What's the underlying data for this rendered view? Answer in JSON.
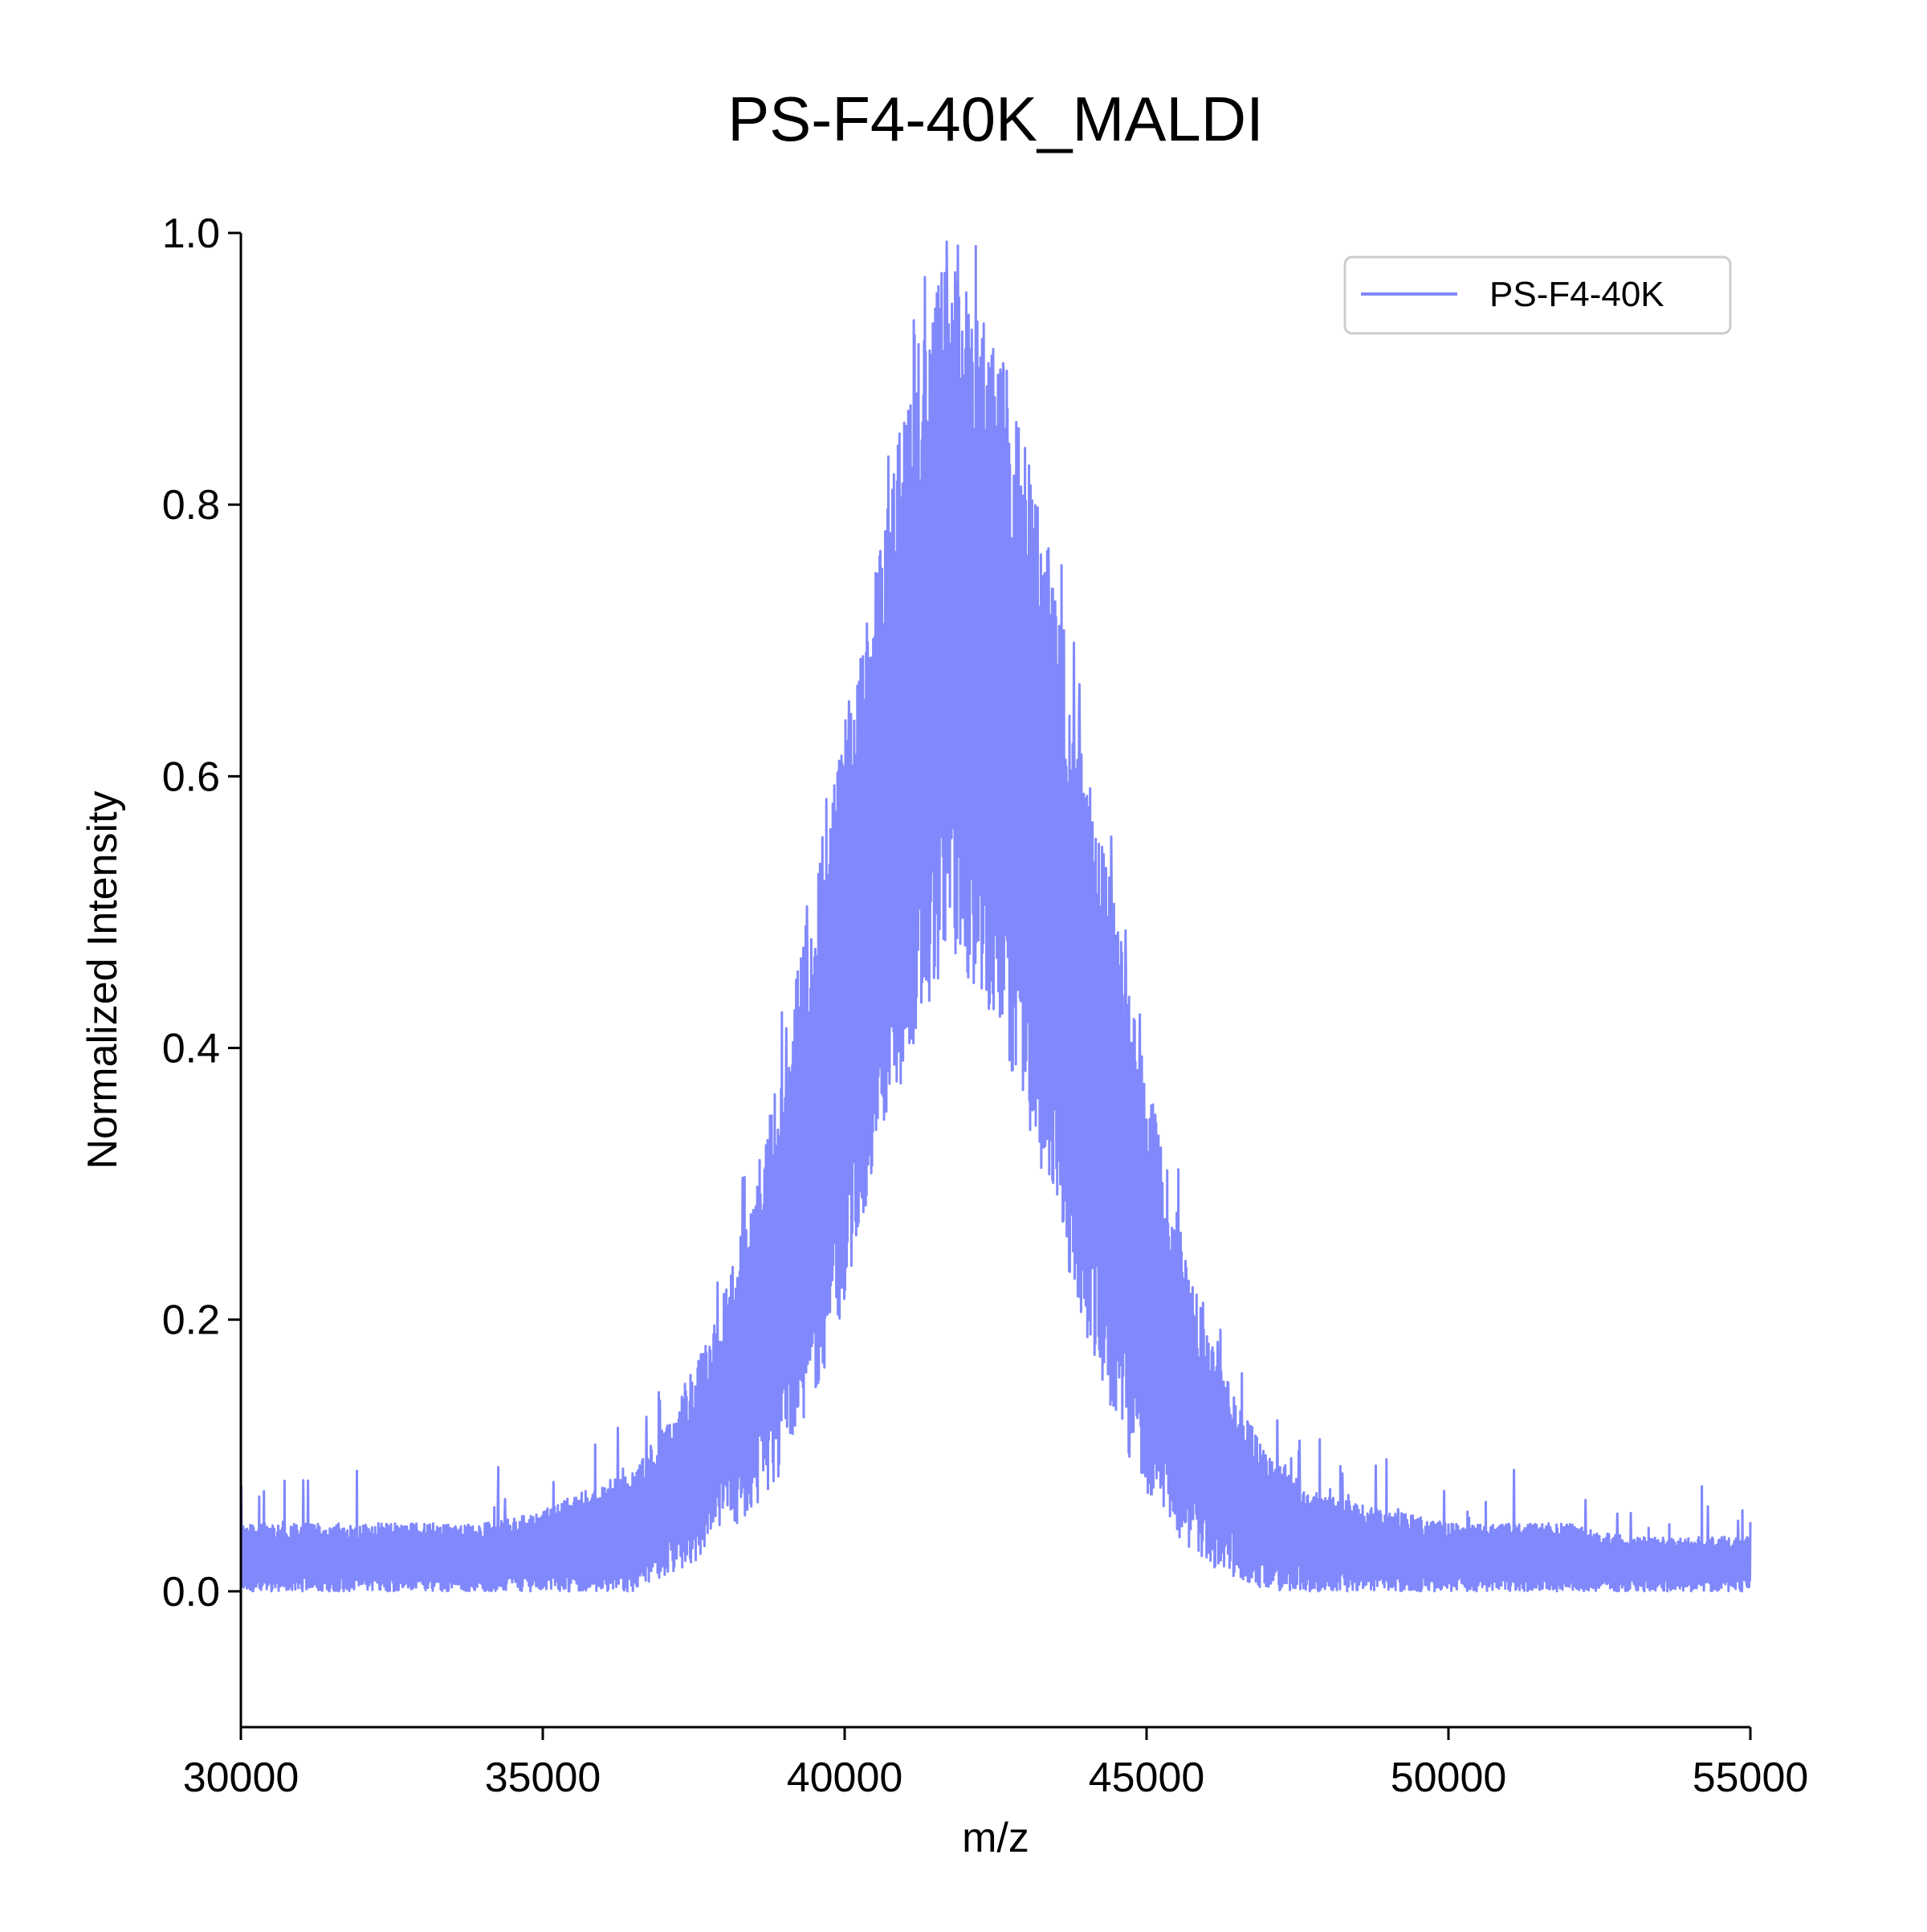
{
  "chart_data": {
    "type": "line",
    "title": "PS-F4-40K_MALDI",
    "xlabel": "m/z",
    "ylabel": "Normalized Intensity",
    "xlim": [
      30000,
      55000
    ],
    "ylim": [
      -0.1,
      1.0
    ],
    "xticks": [
      30000,
      35000,
      40000,
      45000,
      50000,
      55000
    ],
    "yticks": [
      0.0,
      0.2,
      0.4,
      0.6,
      0.8,
      1.0
    ],
    "xtick_labels": [
      "30000",
      "35000",
      "40000",
      "45000",
      "50000",
      "55000"
    ],
    "ytick_labels": [
      "0.0",
      "0.2",
      "0.4",
      "0.6",
      "0.8",
      "1.0"
    ],
    "grid": false,
    "legend": {
      "position": "top-right",
      "entries": [
        "PS-F4-40K"
      ]
    },
    "series": [
      {
        "name": "PS-F4-40K",
        "color": "#8088fc",
        "note_shape": "dense noisy spectrum; envelope summarized below",
        "x": [
          30000,
          31000,
          32000,
          33000,
          34000,
          35000,
          36000,
          36500,
          37000,
          37500,
          38000,
          38500,
          39000,
          39500,
          40000,
          40500,
          41000,
          41500,
          41800,
          42000,
          42500,
          43000,
          43500,
          44000,
          44500,
          45000,
          45500,
          46000,
          46500,
          47000,
          47500,
          48000,
          49000,
          50000,
          51000,
          52000,
          53000,
          54000,
          55000
        ],
        "y_upper": [
          0.05,
          0.05,
          0.05,
          0.05,
          0.05,
          0.06,
          0.08,
          0.09,
          0.12,
          0.16,
          0.22,
          0.3,
          0.4,
          0.53,
          0.63,
          0.75,
          0.88,
          0.96,
          1.0,
          0.97,
          0.92,
          0.84,
          0.74,
          0.62,
          0.5,
          0.38,
          0.28,
          0.19,
          0.14,
          0.1,
          0.08,
          0.07,
          0.06,
          0.05,
          0.05,
          0.05,
          0.04,
          0.04,
          0.04
        ],
        "y_lower": [
          0.0,
          0.0,
          0.0,
          0.0,
          0.0,
          0.0,
          0.0,
          0.0,
          0.01,
          0.02,
          0.04,
          0.06,
          0.09,
          0.14,
          0.21,
          0.3,
          0.38,
          0.44,
          0.47,
          0.45,
          0.42,
          0.35,
          0.27,
          0.19,
          0.12,
          0.07,
          0.04,
          0.02,
          0.01,
          0.0,
          0.0,
          0.0,
          0.0,
          0.0,
          0.0,
          0.0,
          0.0,
          0.0,
          0.0
        ]
      }
    ]
  }
}
